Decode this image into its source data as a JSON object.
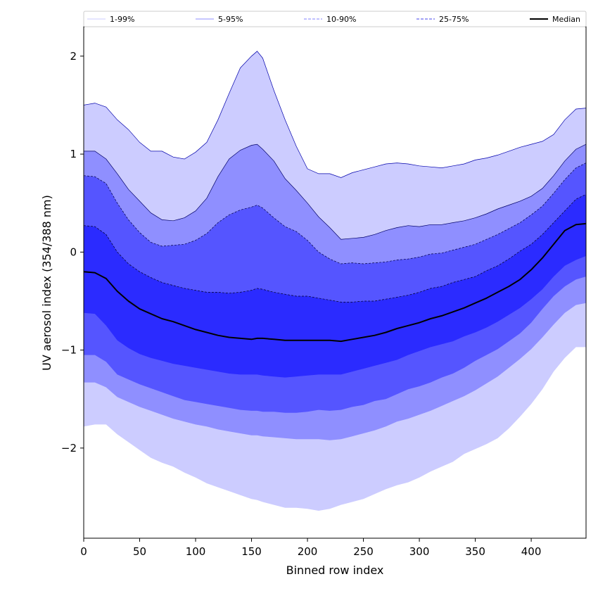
{
  "chart_data": {
    "type": "area",
    "xlabel": "Binned row index",
    "ylabel": "UV aerosol index (354/388 nm)",
    "xlim": [
      0,
      449
    ],
    "ylim": [
      -2.92,
      2.3
    ],
    "xticks": [
      0,
      50,
      100,
      150,
      200,
      250,
      300,
      350,
      400
    ],
    "yticks": [
      -2,
      -1,
      0,
      1,
      2
    ],
    "ytick_labels": [
      "−2",
      "−1",
      "0",
      "1",
      "2"
    ],
    "legend_position": "top (above plot, single row)",
    "bands": [
      {
        "name": "1-99%",
        "color": "#ccccff",
        "line_color": "#0000aa",
        "line_style": "solid",
        "legend_line_color": "#ccccff"
      },
      {
        "name": "5-95%",
        "color": "#8f8fff",
        "line_color": "#000066",
        "line_style": "solid",
        "legend_line_color": "#8f8fff"
      },
      {
        "name": "10-90%",
        "color": "#5555ff",
        "line_color": "#000044",
        "line_style": "dashed",
        "legend_line_color": "#8080ff"
      },
      {
        "name": "25-75%",
        "color": "#2b2bff",
        "line_color": "#000022",
        "line_style": "dashed",
        "legend_line_color": "#4444ee"
      }
    ],
    "median_name": "Median",
    "median_color": "#000000",
    "x": [
      0,
      10,
      20,
      30,
      40,
      50,
      60,
      70,
      80,
      90,
      100,
      110,
      120,
      130,
      140,
      150,
      155,
      160,
      170,
      180,
      190,
      200,
      210,
      220,
      230,
      240,
      250,
      260,
      270,
      280,
      290,
      300,
      310,
      320,
      330,
      340,
      350,
      360,
      370,
      380,
      390,
      400,
      410,
      420,
      430,
      440,
      449
    ],
    "p99": [
      1.5,
      1.52,
      1.48,
      1.35,
      1.25,
      1.12,
      1.03,
      1.03,
      0.97,
      0.95,
      1.02,
      1.12,
      1.35,
      1.62,
      1.88,
      2.0,
      2.05,
      1.98,
      1.65,
      1.35,
      1.08,
      0.85,
      0.8,
      0.8,
      0.76,
      0.81,
      0.84,
      0.87,
      0.9,
      0.91,
      0.9,
      0.88,
      0.87,
      0.86,
      0.88,
      0.9,
      0.94,
      0.96,
      0.99,
      1.03,
      1.07,
      1.1,
      1.13,
      1.2,
      1.35,
      1.46,
      1.47
    ],
    "p95": [
      1.03,
      1.03,
      0.95,
      0.8,
      0.64,
      0.52,
      0.4,
      0.33,
      0.32,
      0.35,
      0.42,
      0.55,
      0.77,
      0.95,
      1.04,
      1.09,
      1.1,
      1.05,
      0.93,
      0.75,
      0.63,
      0.5,
      0.36,
      0.25,
      0.13,
      0.14,
      0.15,
      0.18,
      0.22,
      0.25,
      0.27,
      0.26,
      0.28,
      0.28,
      0.3,
      0.32,
      0.35,
      0.39,
      0.44,
      0.48,
      0.52,
      0.57,
      0.65,
      0.78,
      0.93,
      1.05,
      1.1
    ],
    "p90": [
      0.78,
      0.77,
      0.7,
      0.5,
      0.33,
      0.2,
      0.1,
      0.06,
      0.07,
      0.08,
      0.12,
      0.19,
      0.3,
      0.38,
      0.43,
      0.46,
      0.48,
      0.45,
      0.35,
      0.26,
      0.21,
      0.12,
      0.0,
      -0.07,
      -0.12,
      -0.11,
      -0.12,
      -0.11,
      -0.1,
      -0.08,
      -0.07,
      -0.05,
      -0.02,
      -0.01,
      0.02,
      0.05,
      0.08,
      0.13,
      0.18,
      0.24,
      0.3,
      0.38,
      0.47,
      0.6,
      0.74,
      0.86,
      0.91
    ],
    "p75": [
      0.27,
      0.26,
      0.18,
      0.0,
      -0.12,
      -0.2,
      -0.26,
      -0.31,
      -0.34,
      -0.37,
      -0.39,
      -0.41,
      -0.41,
      -0.42,
      -0.41,
      -0.39,
      -0.37,
      -0.38,
      -0.41,
      -0.43,
      -0.45,
      -0.45,
      -0.47,
      -0.49,
      -0.51,
      -0.51,
      -0.5,
      -0.5,
      -0.48,
      -0.46,
      -0.44,
      -0.41,
      -0.37,
      -0.35,
      -0.31,
      -0.28,
      -0.25,
      -0.19,
      -0.14,
      -0.07,
      0.01,
      0.08,
      0.18,
      0.3,
      0.42,
      0.54,
      0.59
    ],
    "median": [
      -0.2,
      -0.21,
      -0.27,
      -0.4,
      -0.5,
      -0.58,
      -0.63,
      -0.68,
      -0.71,
      -0.75,
      -0.79,
      -0.82,
      -0.85,
      -0.87,
      -0.88,
      -0.89,
      -0.88,
      -0.88,
      -0.89,
      -0.9,
      -0.9,
      -0.9,
      -0.9,
      -0.9,
      -0.91,
      -0.89,
      -0.87,
      -0.85,
      -0.82,
      -0.78,
      -0.75,
      -0.72,
      -0.68,
      -0.65,
      -0.61,
      -0.57,
      -0.52,
      -0.47,
      -0.41,
      -0.35,
      -0.28,
      -0.18,
      -0.06,
      0.08,
      0.22,
      0.28,
      0.29
    ],
    "p25": [
      -0.62,
      -0.63,
      -0.75,
      -0.9,
      -0.98,
      -1.04,
      -1.08,
      -1.11,
      -1.14,
      -1.16,
      -1.18,
      -1.2,
      -1.22,
      -1.24,
      -1.25,
      -1.25,
      -1.25,
      -1.26,
      -1.27,
      -1.28,
      -1.27,
      -1.26,
      -1.25,
      -1.25,
      -1.25,
      -1.22,
      -1.19,
      -1.16,
      -1.13,
      -1.1,
      -1.05,
      -1.01,
      -0.97,
      -0.94,
      -0.91,
      -0.86,
      -0.82,
      -0.77,
      -0.71,
      -0.64,
      -0.57,
      -0.48,
      -0.38,
      -0.25,
      -0.14,
      -0.08,
      -0.04
    ],
    "p10": [
      -1.05,
      -1.05,
      -1.12,
      -1.25,
      -1.3,
      -1.35,
      -1.39,
      -1.43,
      -1.47,
      -1.51,
      -1.53,
      -1.55,
      -1.57,
      -1.59,
      -1.61,
      -1.62,
      -1.62,
      -1.63,
      -1.63,
      -1.64,
      -1.64,
      -1.63,
      -1.61,
      -1.62,
      -1.61,
      -1.58,
      -1.56,
      -1.52,
      -1.5,
      -1.45,
      -1.4,
      -1.37,
      -1.33,
      -1.28,
      -1.24,
      -1.18,
      -1.11,
      -1.05,
      -0.99,
      -0.91,
      -0.83,
      -0.72,
      -0.58,
      -0.45,
      -0.35,
      -0.28,
      -0.25
    ],
    "p5": [
      -1.33,
      -1.33,
      -1.38,
      -1.48,
      -1.53,
      -1.58,
      -1.62,
      -1.66,
      -1.7,
      -1.73,
      -1.76,
      -1.78,
      -1.81,
      -1.83,
      -1.85,
      -1.87,
      -1.87,
      -1.88,
      -1.89,
      -1.9,
      -1.91,
      -1.91,
      -1.91,
      -1.92,
      -1.91,
      -1.88,
      -1.85,
      -1.82,
      -1.78,
      -1.73,
      -1.7,
      -1.66,
      -1.62,
      -1.57,
      -1.52,
      -1.47,
      -1.41,
      -1.34,
      -1.27,
      -1.18,
      -1.09,
      -0.99,
      -0.87,
      -0.74,
      -0.62,
      -0.54,
      -0.52
    ],
    "p1": [
      -1.78,
      -1.76,
      -1.76,
      -1.86,
      -1.94,
      -2.02,
      -2.1,
      -2.15,
      -2.19,
      -2.25,
      -2.3,
      -2.36,
      -2.4,
      -2.44,
      -2.48,
      -2.52,
      -2.53,
      -2.55,
      -2.58,
      -2.61,
      -2.61,
      -2.62,
      -2.64,
      -2.62,
      -2.58,
      -2.55,
      -2.52,
      -2.47,
      -2.42,
      -2.38,
      -2.35,
      -2.3,
      -2.24,
      -2.19,
      -2.14,
      -2.06,
      -2.01,
      -1.96,
      -1.9,
      -1.8,
      -1.68,
      -1.55,
      -1.4,
      -1.22,
      -1.08,
      -0.97,
      -0.97
    ]
  }
}
